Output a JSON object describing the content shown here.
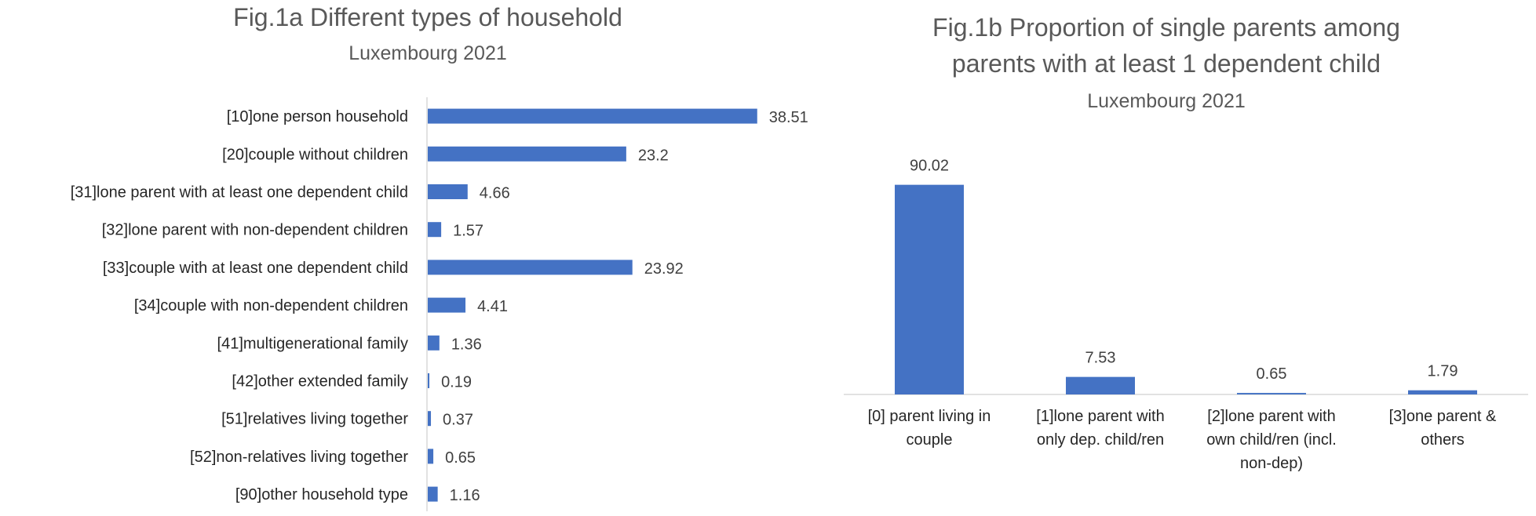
{
  "colors": {
    "bar": "#4472c4",
    "axis": "#d9d9d9",
    "title": "#595959",
    "text": "#262626"
  },
  "chart_data": [
    {
      "type": "bar",
      "orientation": "horizontal",
      "title": "Fig.1a Different types of household",
      "subtitle": "Luxembourg 2021",
      "categories": [
        "[10]one person household",
        "[20]couple without children",
        "[31]lone parent with at least one dependent child",
        "[32]lone parent with non-dependent children",
        "[33]couple with at least one dependent child",
        "[34]couple with non-dependent children",
        "[41]multigenerational family",
        "[42]other extended family",
        "[51]relatives living together",
        "[52]non-relatives living together",
        "[90]other household type"
      ],
      "values": [
        38.51,
        23.2,
        4.66,
        1.57,
        23.92,
        4.41,
        1.36,
        0.19,
        0.37,
        0.65,
        1.16
      ],
      "value_labels": [
        "38.51",
        "23.2",
        "4.66",
        "1.57",
        "23.92",
        "4.41",
        "1.36",
        "0.19",
        "0.37",
        "0.65",
        "1.16"
      ],
      "xlim": [
        0,
        40
      ],
      "grid": false,
      "legend": "none"
    },
    {
      "type": "bar",
      "orientation": "vertical",
      "title_lines": [
        "Fig.1b Proportion of single parents among",
        "parents with at least 1 dependent child"
      ],
      "subtitle": "Luxembourg 2021",
      "categories": [
        [
          "[0] parent living in",
          "couple"
        ],
        [
          "[1]lone parent with",
          "only dep. child/ren"
        ],
        [
          "[2]lone parent with",
          "own child/ren (incl.",
          "non-dep)"
        ],
        [
          "[3]one parent &",
          "others"
        ]
      ],
      "values": [
        90.02,
        7.53,
        0.65,
        1.79
      ],
      "value_labels": [
        "90.02",
        "7.53",
        "0.65",
        "1.79"
      ],
      "ylim": [
        0,
        100
      ],
      "grid": false,
      "legend": "none"
    }
  ]
}
